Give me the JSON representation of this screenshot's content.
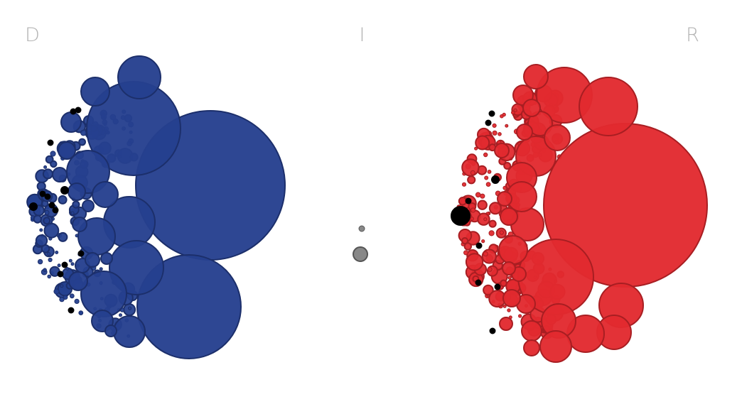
{
  "chart_data": {
    "type": "bubble-cluster",
    "groups": [
      {
        "label": "D",
        "color": "#25408f",
        "stroke": "#1c2f6b",
        "bubble_count": 180,
        "large_values": [
          100,
          65,
          44,
          40,
          36,
          34,
          32,
          28,
          26,
          24,
          22,
          20,
          18,
          17,
          16,
          15,
          14,
          13,
          12,
          11,
          10
        ]
      },
      {
        "label": "I",
        "color": "#888888",
        "stroke": "#555555",
        "bubble_count": 2,
        "large_values": [
          9,
          3
        ]
      },
      {
        "label": "R",
        "color": "#e22a2f",
        "stroke": "#a81e22",
        "bubble_count": 260,
        "large_values": [
          115,
          42,
          40,
          38,
          36,
          33,
          30,
          28,
          26,
          25,
          24,
          23,
          22,
          21,
          20,
          19,
          18,
          17,
          16,
          15,
          14,
          13,
          12,
          11,
          10
        ]
      }
    ],
    "highlight_color": "#000000",
    "legend": "none",
    "grid": false
  }
}
